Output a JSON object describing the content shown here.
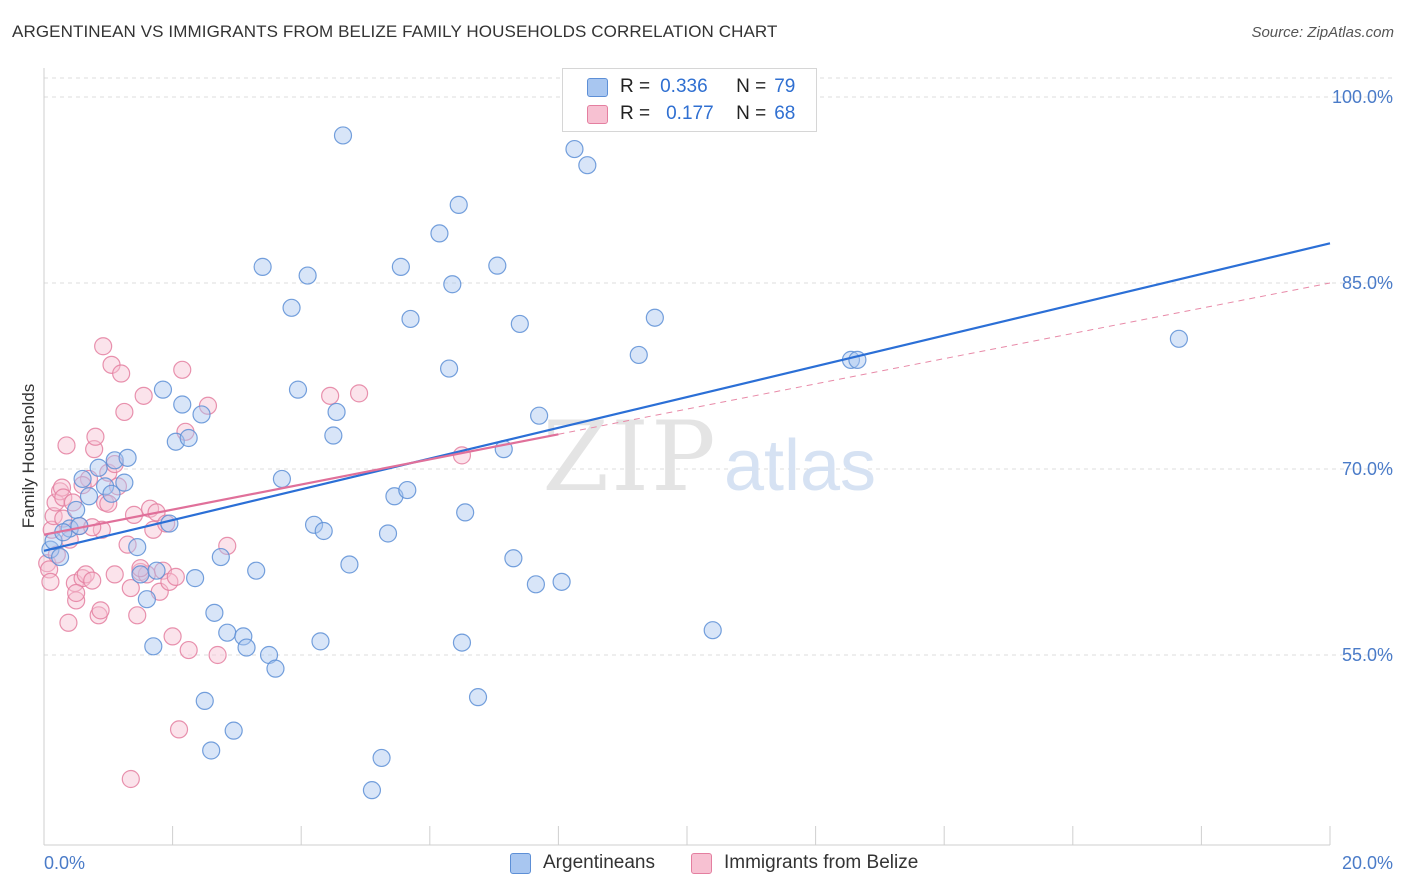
{
  "header": {
    "title": "ARGENTINEAN VS IMMIGRANTS FROM BELIZE FAMILY HOUSEHOLDS CORRELATION CHART",
    "source": "Source: ZipAtlas.com"
  },
  "watermark": {
    "zip": "ZIP",
    "atlas": "atlas"
  },
  "legend": {
    "rows": [
      {
        "r_label": "R =",
        "r_value": "0.336",
        "n_label": "N =",
        "n_value": "79",
        "color": "#a8c6f0",
        "border": "#5d8fd6"
      },
      {
        "r_label": "R =",
        "r_value": "0.177",
        "n_label": "N =",
        "n_value": "68",
        "color": "#f7c1d2",
        "border": "#e47fa0"
      }
    ]
  },
  "bottom_legend": [
    {
      "label": "Argentineans",
      "color": "#a8c6f0",
      "border": "#5d8fd6"
    },
    {
      "label": "Immigrants from Belize",
      "color": "#f7c1d2",
      "border": "#e47fa0"
    }
  ],
  "chart_data": {
    "type": "scatter",
    "title": "ARGENTINEAN VS IMMIGRANTS FROM BELIZE FAMILY HOUSEHOLDS CORRELATION CHART",
    "xlabel": "",
    "ylabel": "Family Households",
    "xlim": [
      0.0,
      20.0
    ],
    "ylim": [
      40.0,
      102.0
    ],
    "x_tick_labels": [
      "0.0%",
      "20.0%"
    ],
    "y_ticks": [
      55.0,
      70.0,
      85.0,
      100.0
    ],
    "y_tick_labels": [
      "55.0%",
      "70.0%",
      "85.0%",
      "100.0%"
    ],
    "grid": true,
    "series": [
      {
        "name": "Argentineans",
        "color": "#5d8fd6",
        "fill": "#a8c6f0",
        "trend": {
          "x": [
            0.0,
            20.0
          ],
          "y": [
            63.4,
            88.2
          ]
        },
        "points": [
          [
            0.1,
            63.5
          ],
          [
            0.15,
            64.2
          ],
          [
            0.25,
            62.9
          ],
          [
            0.4,
            65.2
          ],
          [
            0.5,
            66.7
          ],
          [
            0.55,
            65.4
          ],
          [
            0.6,
            69.2
          ],
          [
            0.7,
            67.8
          ],
          [
            0.85,
            70.1
          ],
          [
            0.95,
            68.6
          ],
          [
            1.05,
            68.0
          ],
          [
            1.1,
            70.7
          ],
          [
            1.25,
            68.9
          ],
          [
            1.3,
            70.9
          ],
          [
            1.45,
            63.7
          ],
          [
            1.5,
            61.5
          ],
          [
            1.6,
            59.5
          ],
          [
            1.7,
            55.7
          ],
          [
            1.75,
            61.8
          ],
          [
            1.85,
            76.4
          ],
          [
            1.95,
            65.6
          ],
          [
            2.05,
            72.2
          ],
          [
            2.15,
            75.2
          ],
          [
            2.25,
            72.5
          ],
          [
            2.35,
            61.2
          ],
          [
            2.45,
            74.4
          ],
          [
            2.5,
            51.3
          ],
          [
            2.6,
            47.3
          ],
          [
            2.65,
            58.4
          ],
          [
            2.75,
            62.9
          ],
          [
            2.85,
            56.8
          ],
          [
            2.95,
            48.9
          ],
          [
            3.1,
            56.5
          ],
          [
            3.15,
            55.6
          ],
          [
            3.3,
            61.8
          ],
          [
            3.4,
            86.3
          ],
          [
            3.5,
            55.0
          ],
          [
            3.6,
            53.9
          ],
          [
            3.7,
            69.2
          ],
          [
            3.85,
            83.0
          ],
          [
            3.95,
            76.4
          ],
          [
            4.1,
            85.6
          ],
          [
            4.2,
            65.5
          ],
          [
            4.35,
            65.0
          ],
          [
            4.3,
            56.1
          ],
          [
            4.5,
            72.7
          ],
          [
            4.55,
            74.6
          ],
          [
            4.65,
            96.9
          ],
          [
            4.75,
            62.3
          ],
          [
            5.1,
            44.1
          ],
          [
            5.25,
            46.7
          ],
          [
            5.35,
            64.8
          ],
          [
            5.45,
            67.8
          ],
          [
            5.55,
            86.3
          ],
          [
            5.65,
            68.3
          ],
          [
            5.7,
            82.1
          ],
          [
            6.15,
            89.0
          ],
          [
            6.3,
            78.1
          ],
          [
            6.35,
            84.9
          ],
          [
            6.45,
            91.3
          ],
          [
            6.5,
            56.0
          ],
          [
            6.55,
            66.5
          ],
          [
            6.75,
            51.6
          ],
          [
            7.05,
            86.4
          ],
          [
            7.15,
            71.6
          ],
          [
            7.3,
            62.8
          ],
          [
            7.4,
            81.7
          ],
          [
            7.65,
            60.7
          ],
          [
            7.7,
            74.3
          ],
          [
            8.05,
            60.9
          ],
          [
            8.25,
            95.8
          ],
          [
            8.45,
            94.5
          ],
          [
            9.25,
            79.2
          ],
          [
            9.5,
            82.2
          ],
          [
            10.4,
            57.0
          ],
          [
            12.55,
            78.8
          ],
          [
            12.65,
            78.8
          ],
          [
            17.65,
            80.5
          ],
          [
            0.3,
            64.9
          ]
        ]
      },
      {
        "name": "Immigrants from Belize",
        "color": "#e47fa0",
        "fill": "#f7c1d2",
        "trend": {
          "x": [
            0.0,
            8.0
          ],
          "y": [
            64.7,
            72.8
          ]
        },
        "trend_ext": {
          "x": [
            8.0,
            20.0
          ],
          "y": [
            72.8,
            85.0
          ]
        },
        "points": [
          [
            0.05,
            62.4
          ],
          [
            0.08,
            61.9
          ],
          [
            0.1,
            60.9
          ],
          [
            0.12,
            65.1
          ],
          [
            0.15,
            66.2
          ],
          [
            0.18,
            67.3
          ],
          [
            0.2,
            63.1
          ],
          [
            0.25,
            68.2
          ],
          [
            0.28,
            68.5
          ],
          [
            0.3,
            67.7
          ],
          [
            0.35,
            71.9
          ],
          [
            0.38,
            57.6
          ],
          [
            0.45,
            67.3
          ],
          [
            0.48,
            60.8
          ],
          [
            0.5,
            59.4
          ],
          [
            0.55,
            65.4
          ],
          [
            0.6,
            61.2
          ],
          [
            0.65,
            61.5
          ],
          [
            0.7,
            69.2
          ],
          [
            0.75,
            61.0
          ],
          [
            0.78,
            71.6
          ],
          [
            0.8,
            72.6
          ],
          [
            0.85,
            58.2
          ],
          [
            0.88,
            58.6
          ],
          [
            0.9,
            65.1
          ],
          [
            0.92,
            79.9
          ],
          [
            0.95,
            67.3
          ],
          [
            1.0,
            67.2
          ],
          [
            1.0,
            69.7
          ],
          [
            1.05,
            78.4
          ],
          [
            1.1,
            61.5
          ],
          [
            1.15,
            68.6
          ],
          [
            1.2,
            77.7
          ],
          [
            1.25,
            74.6
          ],
          [
            1.3,
            63.9
          ],
          [
            1.35,
            60.4
          ],
          [
            1.4,
            66.3
          ],
          [
            1.45,
            58.2
          ],
          [
            1.5,
            61.7
          ],
          [
            1.55,
            75.9
          ],
          [
            1.6,
            61.5
          ],
          [
            1.65,
            66.8
          ],
          [
            1.7,
            65.1
          ],
          [
            1.75,
            66.5
          ],
          [
            1.8,
            60.1
          ],
          [
            1.85,
            61.8
          ],
          [
            1.9,
            65.6
          ],
          [
            1.95,
            60.9
          ],
          [
            2.0,
            56.5
          ],
          [
            2.05,
            61.3
          ],
          [
            2.1,
            49.0
          ],
          [
            2.15,
            78.0
          ],
          [
            2.2,
            73.0
          ],
          [
            2.25,
            55.4
          ],
          [
            2.55,
            75.1
          ],
          [
            2.7,
            55.0
          ],
          [
            2.85,
            63.8
          ],
          [
            4.45,
            75.9
          ],
          [
            4.9,
            76.1
          ],
          [
            6.5,
            71.1
          ],
          [
            1.35,
            45.0
          ],
          [
            0.4,
            64.3
          ],
          [
            0.6,
            68.7
          ],
          [
            0.75,
            65.3
          ],
          [
            1.1,
            70.4
          ],
          [
            1.5,
            62.0
          ],
          [
            0.3,
            66.0
          ],
          [
            0.5,
            60.0
          ]
        ]
      }
    ]
  }
}
